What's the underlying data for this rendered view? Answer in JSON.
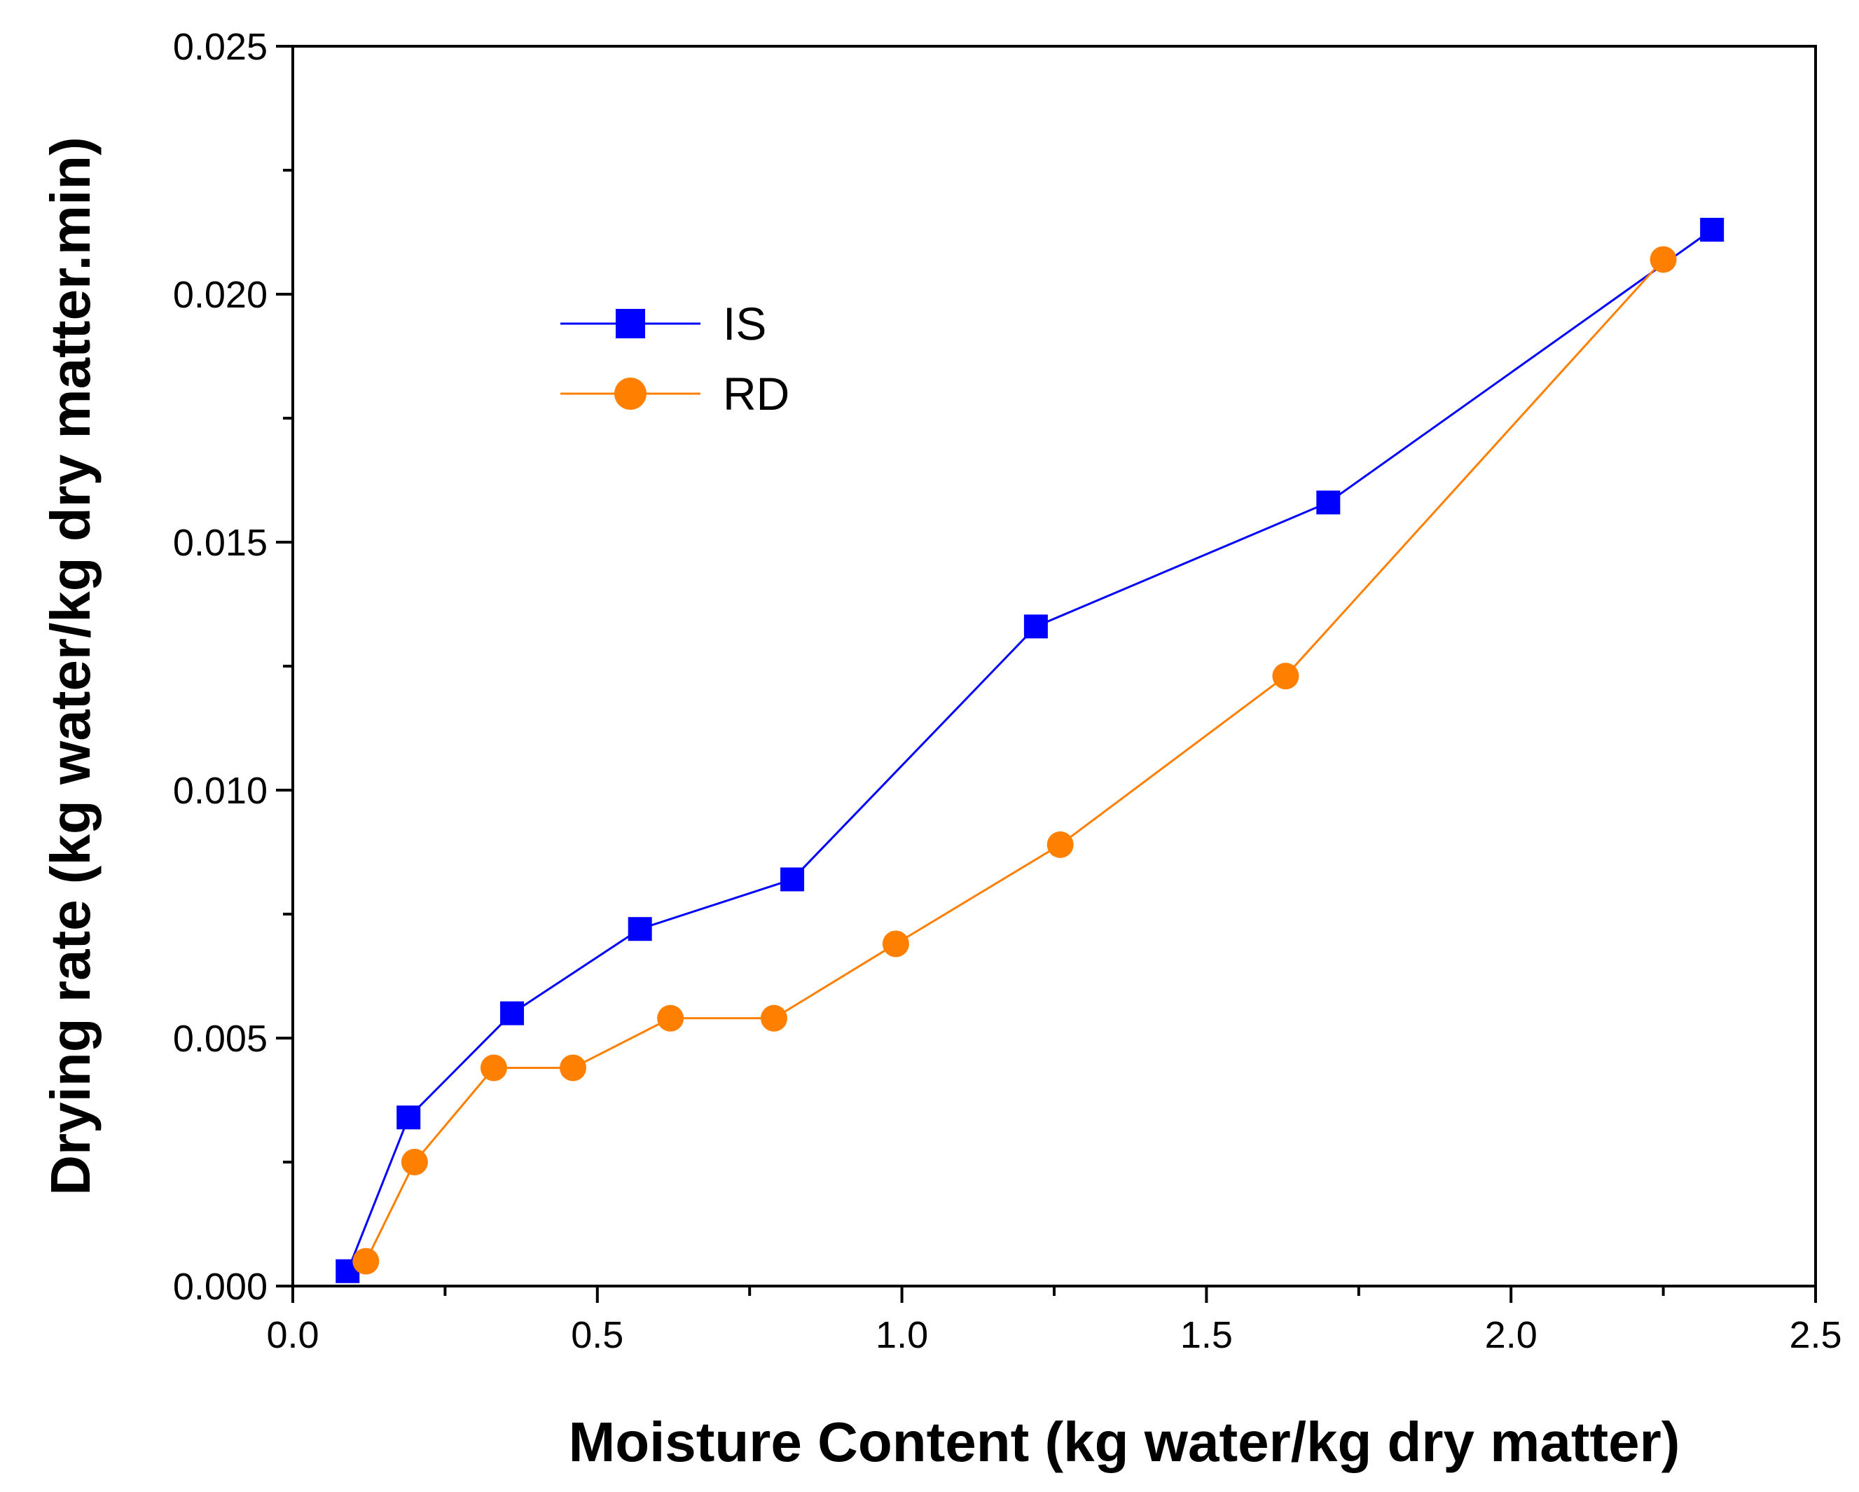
{
  "chart_data": {
    "type": "line",
    "title": "",
    "xlabel": "Moisture Content (kg water/kg dry matter)",
    "ylabel": "Drying rate (kg water/kg dry matter.min)",
    "xlim": [
      0,
      2.5
    ],
    "ylim": [
      0,
      0.025
    ],
    "xticks": [
      0.0,
      0.5,
      1.0,
      1.5,
      2.0,
      2.5
    ],
    "xtick_labels": [
      "0.0",
      "0.5",
      "1.0",
      "1.5",
      "2.0",
      "2.5"
    ],
    "yticks": [
      0.0,
      0.005,
      0.01,
      0.015,
      0.02,
      0.025
    ],
    "ytick_labels": [
      "0.000",
      "0.005",
      "0.010",
      "0.015",
      "0.020",
      "0.025"
    ],
    "grid": false,
    "legend_position": "top-left",
    "series": [
      {
        "name": "IS",
        "color": "#0000ff",
        "marker": "square",
        "x": [
          0.09,
          0.19,
          0.36,
          0.57,
          0.82,
          1.22,
          1.7,
          2.33
        ],
        "y": [
          0.0003,
          0.0034,
          0.0055,
          0.0072,
          0.0082,
          0.0133,
          0.0158,
          0.0213
        ]
      },
      {
        "name": "RD",
        "color": "#ff8000",
        "marker": "circle",
        "x": [
          0.12,
          0.2,
          0.33,
          0.46,
          0.62,
          0.79,
          0.99,
          1.26,
          1.63,
          2.25
        ],
        "y": [
          0.0005,
          0.0025,
          0.0044,
          0.0044,
          0.0054,
          0.0054,
          0.0069,
          0.0089,
          0.0123,
          0.0207
        ]
      }
    ]
  }
}
